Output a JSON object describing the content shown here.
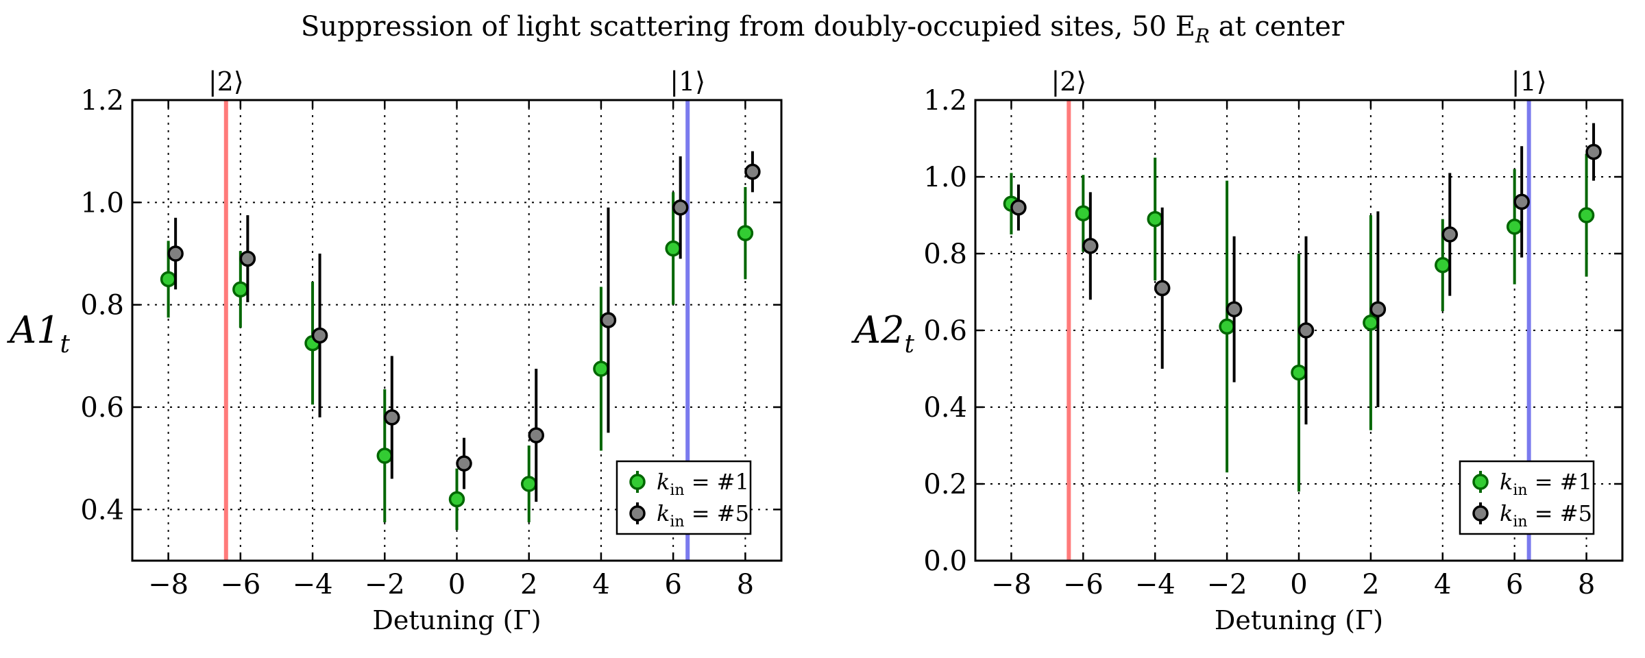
{
  "figure": {
    "title": "Suppression of light scattering from doubly-occupied sites, 50 E",
    "title_sub": "R",
    "title_tail": " at center"
  },
  "chart_data": [
    {
      "type": "scatter",
      "xlabel": "Detuning (Γ)",
      "ylabel": "A1",
      "ylabel_sub": "t",
      "xlim": [
        -9,
        9
      ],
      "ylim": [
        0.3,
        1.2
      ],
      "xticks": [
        -8,
        -6,
        -4,
        -2,
        0,
        2,
        4,
        6,
        8
      ],
      "xtick_labels": [
        "−8",
        "−6",
        "−4",
        "−2",
        "0",
        "2",
        "4",
        "6",
        "8"
      ],
      "yticks": [
        0.4,
        0.6,
        0.8,
        1.0,
        1.2
      ],
      "ytick_labels": [
        "0.4",
        "0.6",
        "0.8",
        "1.0",
        "1.2"
      ],
      "grid": true,
      "legend_position": "lower-right",
      "vlines": [
        {
          "x": -6.4,
          "color": "#ff7a7a",
          "label": "|2⟩"
        },
        {
          "x": 6.4,
          "color": "#7a7aee",
          "label": "|1⟩"
        }
      ],
      "series": [
        {
          "name": "k",
          "name_sub": "in",
          "name_tail": " = #1",
          "color": "#33cc33",
          "edge": "#006600",
          "x": [
            -8,
            -6,
            -4,
            -2,
            0,
            2,
            4,
            6,
            8
          ],
          "y": [
            0.85,
            0.83,
            0.725,
            0.505,
            0.42,
            0.45,
            0.675,
            0.91,
            0.94
          ],
          "err": [
            0.075,
            0.075,
            0.12,
            0.13,
            0.06,
            0.075,
            0.16,
            0.11,
            0.09
          ]
        },
        {
          "name": "k",
          "name_sub": "in",
          "name_tail": " = #5",
          "color": "#808080",
          "edge": "#000000",
          "x": [
            -7.8,
            -5.8,
            -3.8,
            -1.8,
            0.2,
            2.2,
            4.2,
            6.2,
            8.2
          ],
          "y": [
            0.9,
            0.89,
            0.74,
            0.58,
            0.49,
            0.545,
            0.77,
            0.99,
            1.06
          ],
          "err": [
            0.07,
            0.085,
            0.16,
            0.12,
            0.05,
            0.13,
            0.22,
            0.1,
            0.04
          ]
        }
      ]
    },
    {
      "type": "scatter",
      "xlabel": "Detuning (Γ)",
      "ylabel": "A2",
      "ylabel_sub": "t",
      "xlim": [
        -9,
        9
      ],
      "ylim": [
        0.0,
        1.2
      ],
      "xticks": [
        -8,
        -6,
        -4,
        -2,
        0,
        2,
        4,
        6,
        8
      ],
      "xtick_labels": [
        "−8",
        "−6",
        "−4",
        "−2",
        "0",
        "2",
        "4",
        "6",
        "8"
      ],
      "yticks": [
        0.0,
        0.2,
        0.4,
        0.6,
        0.8,
        1.0,
        1.2
      ],
      "ytick_labels": [
        "0.0",
        "0.2",
        "0.4",
        "0.6",
        "0.8",
        "1.0",
        "1.2"
      ],
      "grid": true,
      "legend_position": "lower-right",
      "vlines": [
        {
          "x": -6.4,
          "color": "#ff7a7a",
          "label": "|2⟩"
        },
        {
          "x": 6.4,
          "color": "#7a7aee",
          "label": "|1⟩"
        }
      ],
      "series": [
        {
          "name": "k",
          "name_sub": "in",
          "name_tail": " = #1",
          "color": "#33cc33",
          "edge": "#006600",
          "x": [
            -8,
            -6,
            -4,
            -2,
            0,
            2,
            4,
            6,
            8
          ],
          "y": [
            0.93,
            0.905,
            0.89,
            0.61,
            0.49,
            0.62,
            0.77,
            0.87,
            0.9
          ],
          "err": [
            0.08,
            0.1,
            0.16,
            0.38,
            0.31,
            0.28,
            0.12,
            0.15,
            0.16
          ]
        },
        {
          "name": "k",
          "name_sub": "in",
          "name_tail": " = #5",
          "color": "#808080",
          "edge": "#000000",
          "x": [
            -7.8,
            -5.8,
            -3.8,
            -1.8,
            0.2,
            2.2,
            4.2,
            6.2,
            8.2
          ],
          "y": [
            0.92,
            0.82,
            0.71,
            0.655,
            0.6,
            0.655,
            0.85,
            0.935,
            1.065
          ],
          "err": [
            0.06,
            0.14,
            0.21,
            0.19,
            0.245,
            0.255,
            0.16,
            0.145,
            0.075
          ]
        }
      ]
    }
  ]
}
